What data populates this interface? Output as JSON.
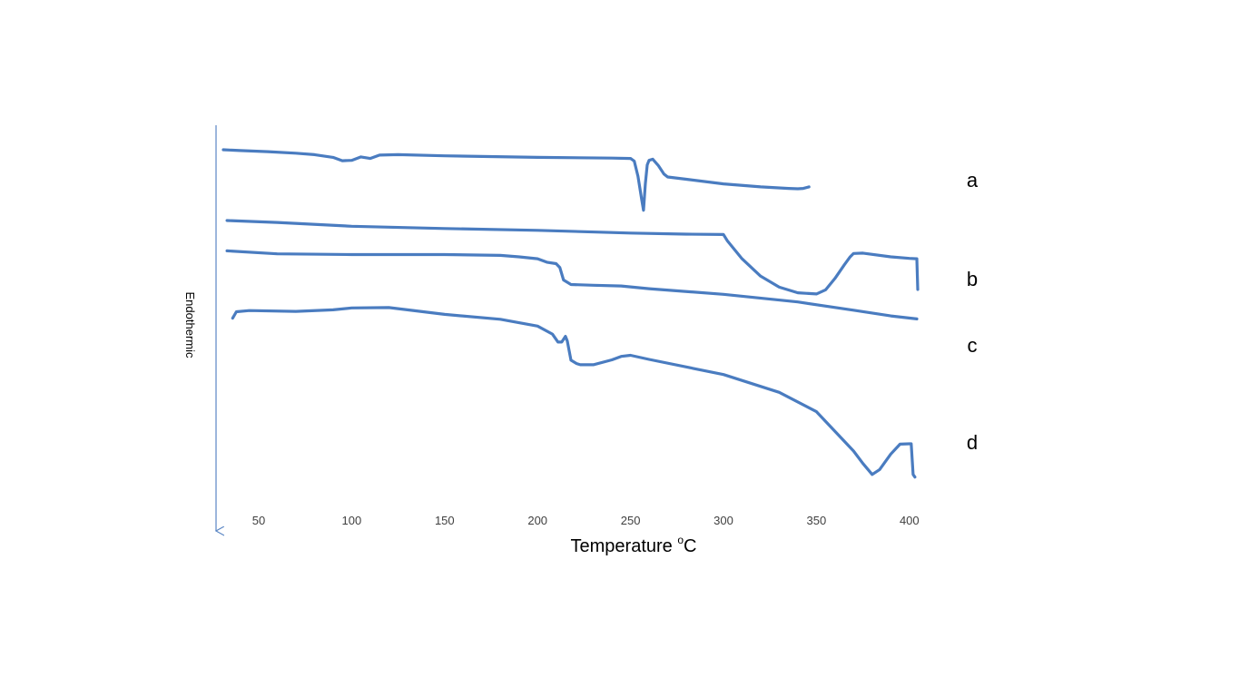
{
  "chart_data": {
    "type": "line",
    "xlabel_main": "Temperature ",
    "xlabel_sup": "o",
    "xlabel_unit": "C",
    "ylabel": "Endothermic",
    "xlim": [
      30,
      405
    ],
    "x_ticks": [
      50,
      100,
      150,
      200,
      250,
      300,
      350,
      400
    ],
    "ylim": [
      -1.0,
      0.0
    ],
    "grid": false,
    "legend": "none",
    "line_color": "#4a7cc0",
    "axis_color": "#5a86c4",
    "series": [
      {
        "name": "a",
        "x": [
          31,
          40,
          55,
          70,
          80,
          90,
          95,
          100,
          105,
          110,
          115,
          125,
          150,
          200,
          240,
          250,
          252,
          254,
          256,
          257,
          258,
          259,
          260,
          262,
          265,
          268,
          270,
          280,
          300,
          320,
          335,
          340,
          343,
          346
        ],
        "y": [
          -0.06,
          -0.062,
          -0.065,
          -0.069,
          -0.073,
          -0.08,
          -0.089,
          -0.088,
          -0.079,
          -0.083,
          -0.074,
          -0.073,
          -0.076,
          -0.08,
          -0.082,
          -0.083,
          -0.09,
          -0.13,
          -0.19,
          -0.22,
          -0.15,
          -0.1,
          -0.088,
          -0.085,
          -0.102,
          -0.124,
          -0.132,
          -0.138,
          -0.15,
          -0.158,
          -0.162,
          -0.163,
          -0.162,
          -0.158
        ]
      },
      {
        "name": "b",
        "x": [
          33,
          60,
          100,
          150,
          200,
          250,
          280,
          300,
          302,
          310,
          320,
          330,
          340,
          350,
          355,
          360,
          365,
          368,
          370,
          375,
          390,
          400,
          404,
          404.5
        ],
        "y": [
          -0.247,
          -0.252,
          -0.262,
          -0.268,
          -0.273,
          -0.28,
          -0.283,
          -0.284,
          -0.3,
          -0.348,
          -0.394,
          -0.423,
          -0.438,
          -0.441,
          -0.43,
          -0.4,
          -0.364,
          -0.344,
          -0.334,
          -0.333,
          -0.343,
          -0.347,
          -0.348,
          -0.429
        ]
      },
      {
        "name": "c",
        "x": [
          33,
          60,
          100,
          150,
          180,
          190,
          200,
          205,
          210,
          212,
          214,
          218,
          230,
          245,
          260,
          300,
          340,
          370,
          390,
          404
        ],
        "y": [
          -0.327,
          -0.335,
          -0.337,
          -0.337,
          -0.339,
          -0.343,
          -0.348,
          -0.357,
          -0.361,
          -0.371,
          -0.404,
          -0.416,
          -0.418,
          -0.42,
          -0.427,
          -0.442,
          -0.462,
          -0.484,
          -0.499,
          -0.507
        ]
      },
      {
        "name": "d",
        "x": [
          36,
          38,
          45,
          70,
          90,
          100,
          120,
          150,
          180,
          200,
          208,
          211,
          213,
          215,
          216,
          218,
          221,
          223,
          230,
          240,
          245,
          250,
          260,
          300,
          330,
          350,
          370,
          375,
          380,
          384,
          390,
          395,
          400,
          401,
          402,
          403
        ],
        "y": [
          -0.505,
          -0.488,
          -0.485,
          -0.487,
          -0.483,
          -0.478,
          -0.477,
          -0.495,
          -0.508,
          -0.526,
          -0.547,
          -0.568,
          -0.568,
          -0.553,
          -0.565,
          -0.616,
          -0.625,
          -0.628,
          -0.628,
          -0.615,
          -0.606,
          -0.603,
          -0.614,
          -0.654,
          -0.701,
          -0.752,
          -0.856,
          -0.889,
          -0.918,
          -0.905,
          -0.864,
          -0.838,
          -0.837,
          -0.837,
          -0.918,
          -0.925
        ]
      }
    ]
  }
}
